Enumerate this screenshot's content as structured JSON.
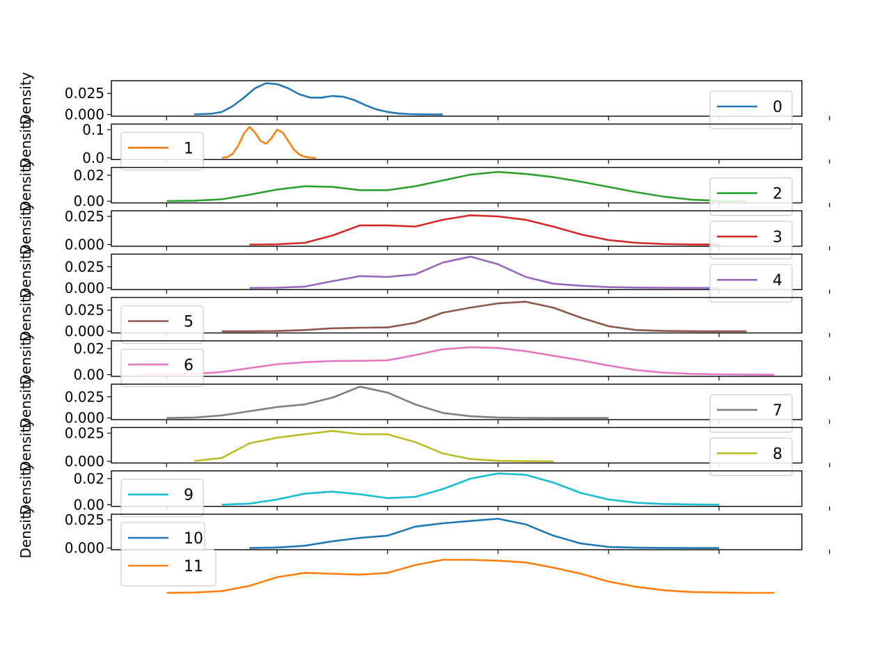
{
  "chart_data": {
    "type": "line",
    "layout": "stacked-subplots",
    "grid": false,
    "x_ticks_labeled": false,
    "panels": [
      {
        "name": "0",
        "ylabel": "Density",
        "yticks": [
          "0.025",
          "0.000"
        ],
        "ylim": [
          -0.002,
          0.04
        ],
        "legend_loc": "lower-right",
        "x": [
          -15,
          -12,
          -10,
          -8,
          -6,
          -4,
          -2,
          0,
          2,
          4,
          6,
          8,
          10,
          12,
          14,
          16,
          18,
          20,
          22,
          24,
          26,
          28,
          30
        ],
        "y": [
          0.0002,
          0.0008,
          0.003,
          0.01,
          0.02,
          0.031,
          0.037,
          0.036,
          0.031,
          0.024,
          0.02,
          0.02,
          0.022,
          0.021,
          0.017,
          0.011,
          0.006,
          0.003,
          0.0012,
          0.0005,
          0.0002,
          0.0001,
          0.0001
        ],
        "color": "#1f77b4"
      },
      {
        "name": "1",
        "ylabel": "Density",
        "yticks": [
          "0.1",
          "0.0"
        ],
        "ylim": [
          -0.006,
          0.12
        ],
        "legend_loc": "upper-left",
        "x": [
          -10,
          -9,
          -8,
          -7,
          -6,
          -5,
          -4,
          -3,
          -2,
          -1,
          0,
          1,
          2,
          3,
          4,
          5,
          6,
          7
        ],
        "y": [
          0.0,
          0.003,
          0.015,
          0.045,
          0.087,
          0.11,
          0.09,
          0.06,
          0.05,
          0.07,
          0.1,
          0.09,
          0.06,
          0.03,
          0.012,
          0.004,
          0.001,
          0.0
        ],
        "color": "#ff7f0e"
      },
      {
        "name": "2",
        "ylabel": "Density",
        "yticks": [
          "0.02",
          "0.00"
        ],
        "ylim": [
          -0.0013,
          0.026
        ],
        "legend_loc": "lower-right",
        "x": [
          -20,
          -15,
          -10,
          -5,
          0,
          5,
          10,
          15,
          20,
          25,
          30,
          35,
          40,
          45,
          50,
          55,
          60,
          65,
          70,
          75,
          80,
          85
        ],
        "y": [
          0.0001,
          0.0004,
          0.0015,
          0.005,
          0.009,
          0.0115,
          0.011,
          0.0085,
          0.0085,
          0.0115,
          0.016,
          0.0205,
          0.0225,
          0.021,
          0.0185,
          0.015,
          0.011,
          0.007,
          0.0035,
          0.0012,
          0.0003,
          0.0001
        ],
        "color": "#2ca02c"
      },
      {
        "name": "3",
        "ylabel": "Density",
        "yticks": [
          "0.025",
          "0.000"
        ],
        "ylim": [
          -0.0015,
          0.03
        ],
        "legend_loc": "lower-right",
        "x": [
          -5,
          0,
          5,
          10,
          15,
          20,
          25,
          30,
          35,
          40,
          45,
          50,
          55,
          60,
          65,
          70,
          75,
          80
        ],
        "y": [
          0.0,
          0.0002,
          0.0015,
          0.008,
          0.017,
          0.017,
          0.016,
          0.022,
          0.026,
          0.025,
          0.022,
          0.016,
          0.009,
          0.004,
          0.0015,
          0.0005,
          0.0001,
          0.0
        ],
        "color": "#d62728"
      },
      {
        "name": "4",
        "ylabel": "Density",
        "yticks": [
          "0.025",
          "0.000"
        ],
        "ylim": [
          -0.002,
          0.04
        ],
        "legend_loc": "lower-right",
        "x": [
          -5,
          0,
          5,
          10,
          15,
          20,
          25,
          30,
          35,
          40,
          45,
          50,
          55,
          60,
          65,
          70,
          75,
          80
        ],
        "y": [
          0.0,
          0.0002,
          0.0015,
          0.008,
          0.014,
          0.013,
          0.016,
          0.03,
          0.037,
          0.028,
          0.013,
          0.005,
          0.0025,
          0.001,
          0.0004,
          0.0001,
          0.0,
          0.0
        ],
        "color": "#9467bd"
      },
      {
        "name": "5",
        "ylabel": "Density",
        "yticks": [
          "0.025",
          "0.000"
        ],
        "ylim": [
          -0.002,
          0.04
        ],
        "legend_loc": "upper-left",
        "x": [
          -10,
          -5,
          0,
          5,
          10,
          15,
          20,
          25,
          30,
          35,
          40,
          45,
          50,
          55,
          60,
          65,
          70,
          75,
          80,
          85
        ],
        "y": [
          0.0,
          0.0,
          0.0003,
          0.0015,
          0.0035,
          0.0042,
          0.0045,
          0.01,
          0.022,
          0.028,
          0.033,
          0.035,
          0.028,
          0.016,
          0.006,
          0.0015,
          0.0004,
          0.0001,
          0.0,
          0.0
        ],
        "color": "#8c564b"
      },
      {
        "name": "6",
        "ylabel": "Density",
        "yticks": [
          "0.02",
          "0.00"
        ],
        "ylim": [
          -0.0013,
          0.026
        ],
        "legend_loc": "upper-left",
        "x": [
          -25,
          -20,
          -15,
          -10,
          -5,
          0,
          5,
          10,
          15,
          20,
          25,
          30,
          35,
          40,
          45,
          50,
          55,
          60,
          65,
          70,
          75,
          80,
          85,
          90
        ],
        "y": [
          0.0,
          0.0001,
          0.0005,
          0.002,
          0.005,
          0.008,
          0.0095,
          0.0105,
          0.0106,
          0.011,
          0.015,
          0.0195,
          0.021,
          0.0205,
          0.018,
          0.0145,
          0.011,
          0.007,
          0.0035,
          0.0015,
          0.0006,
          0.0002,
          0.0001,
          0.0
        ],
        "color": "#e377c2"
      },
      {
        "name": "7",
        "ylabel": "Density",
        "yticks": [
          "0.025",
          "0.000"
        ],
        "ylim": [
          -0.002,
          0.04
        ],
        "legend_loc": "lower-right",
        "x": [
          -20,
          -15,
          -10,
          -5,
          0,
          5,
          10,
          15,
          20,
          25,
          30,
          35,
          40,
          45,
          50,
          55,
          60
        ],
        "y": [
          0.0,
          0.0005,
          0.003,
          0.008,
          0.013,
          0.016,
          0.024,
          0.037,
          0.03,
          0.016,
          0.006,
          0.002,
          0.0005,
          0.0001,
          0.0,
          0.0,
          0.0
        ],
        "color": "#7f7f7f"
      },
      {
        "name": "8",
        "ylabel": "Density",
        "yticks": [
          "0.025",
          "0.000"
        ],
        "ylim": [
          -0.0015,
          0.03
        ],
        "legend_loc": "lower-right",
        "x": [
          -15,
          -10,
          -5,
          0,
          5,
          10,
          15,
          20,
          25,
          30,
          35,
          40,
          45,
          50
        ],
        "y": [
          0.0003,
          0.003,
          0.016,
          0.021,
          0.024,
          0.027,
          0.024,
          0.024,
          0.017,
          0.007,
          0.002,
          0.0005,
          0.0001,
          0.0
        ],
        "color": "#bcbd22"
      },
      {
        "name": "9",
        "ylabel": "Density",
        "yticks": [
          "0.02",
          "0.00"
        ],
        "ylim": [
          -0.0013,
          0.026
        ],
        "legend_loc": "upper-left",
        "x": [
          -10,
          -5,
          0,
          5,
          10,
          15,
          20,
          25,
          30,
          35,
          40,
          45,
          50,
          55,
          60,
          65,
          70,
          75,
          80
        ],
        "y": [
          0.0,
          0.0008,
          0.004,
          0.0085,
          0.01,
          0.008,
          0.005,
          0.006,
          0.012,
          0.02,
          0.024,
          0.023,
          0.017,
          0.009,
          0.004,
          0.0015,
          0.0005,
          0.0002,
          0.0
        ],
        "color": "#17becf"
      },
      {
        "name": "10",
        "ylabel": "Density",
        "yticks": [
          "0.025",
          "0.000"
        ],
        "ylim": [
          -0.0015,
          0.03
        ],
        "legend_loc": "upper-left",
        "x": [
          -5,
          0,
          5,
          10,
          15,
          20,
          25,
          30,
          35,
          40,
          45,
          50,
          55,
          60,
          65,
          70,
          75,
          80
        ],
        "y": [
          0.0,
          0.0005,
          0.002,
          0.006,
          0.009,
          0.011,
          0.019,
          0.022,
          0.024,
          0.026,
          0.021,
          0.011,
          0.004,
          0.001,
          0.0003,
          0.0001,
          0.0,
          0.0
        ],
        "color": "#1f77b4"
      }
    ],
    "overflow_series": {
      "name": "11",
      "color": "#ff7f0e",
      "x": [
        -20,
        -15,
        -10,
        -5,
        0,
        5,
        10,
        15,
        20,
        25,
        30,
        35,
        40,
        45,
        50,
        55,
        60,
        65,
        70,
        75,
        80,
        85,
        90
      ],
      "y": [
        0.0,
        0.0002,
        0.001,
        0.004,
        0.009,
        0.0115,
        0.011,
        0.0105,
        0.0115,
        0.016,
        0.019,
        0.019,
        0.0185,
        0.0175,
        0.0145,
        0.011,
        0.0065,
        0.0035,
        0.0015,
        0.0005,
        0.0002,
        0.0,
        0.0
      ]
    }
  }
}
